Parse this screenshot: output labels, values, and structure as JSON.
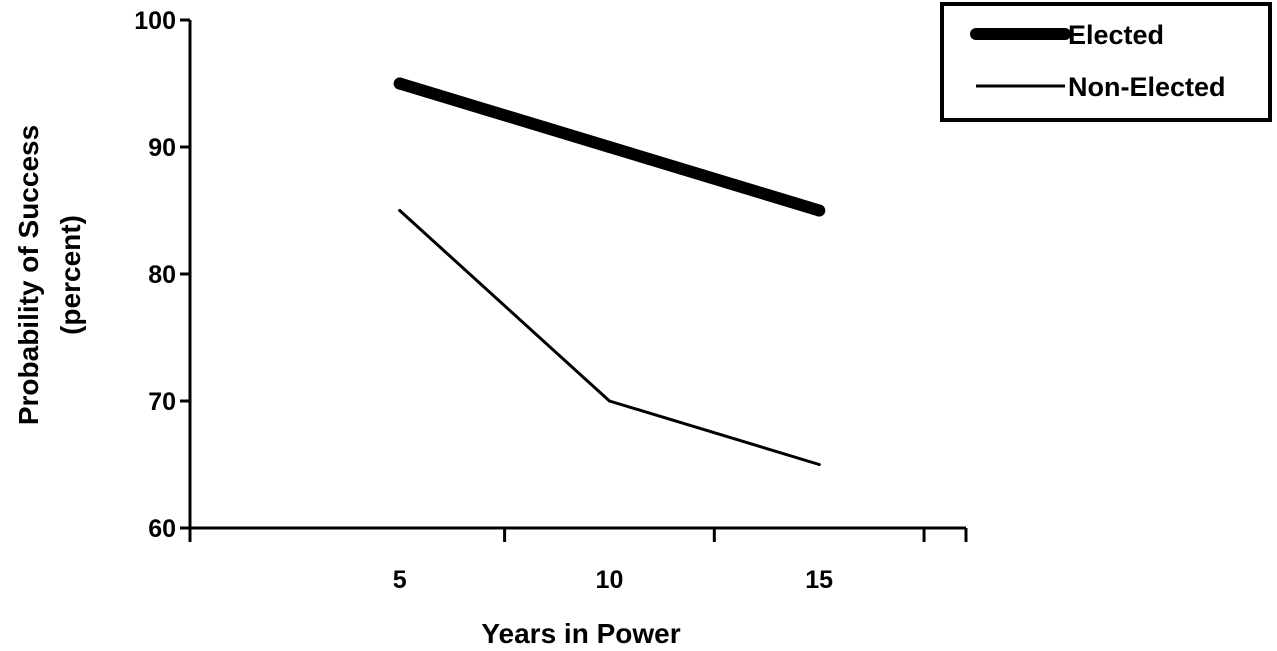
{
  "chart_data": {
    "type": "line",
    "x": [
      5,
      10,
      15
    ],
    "xlabel": "Years in Power",
    "ylabel": [
      "Probability of Success",
      "(percent)"
    ],
    "ylim": [
      60,
      100
    ],
    "xlim": [
      0,
      18.5
    ],
    "yticks": [
      60,
      70,
      80,
      90,
      100
    ],
    "xticks": [
      5,
      10,
      15
    ],
    "grid": false,
    "legend_position": "top-right",
    "series": [
      {
        "name": "Elected",
        "values": [
          95,
          90,
          85
        ],
        "color": "#000000",
        "line_width": "thick"
      },
      {
        "name": "Non-Elected",
        "values": [
          85,
          70,
          65
        ],
        "color": "#000000",
        "line_width": "thin"
      }
    ]
  }
}
